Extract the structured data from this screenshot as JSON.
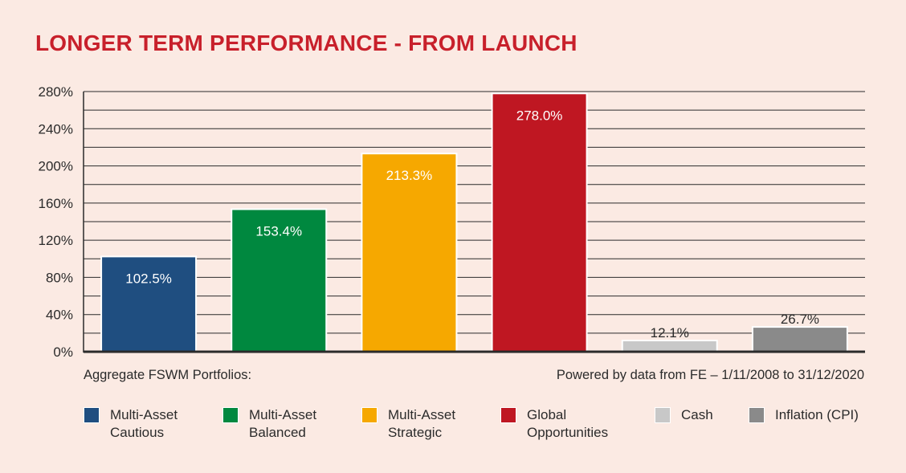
{
  "colors": {
    "background": "#fbeae3",
    "title": "#c8202b",
    "cautious": "#1f4e80",
    "balanced": "#00883f",
    "strategic": "#f6a800",
    "global": "#bf1722",
    "cash": "#c8c8c8",
    "inflation": "#8a8a8a"
  },
  "chart_data": {
    "type": "bar",
    "title": "LONGER TERM PERFORMANCE - FROM LAUNCH",
    "xlabel": "",
    "ylabel": "",
    "ylim": [
      0,
      280
    ],
    "yticks": [
      0,
      40,
      80,
      120,
      160,
      200,
      240,
      280
    ],
    "ytick_labels": [
      "0%",
      "40%",
      "80%",
      "120%",
      "160%",
      "200%",
      "240%",
      "280%"
    ],
    "grid": true,
    "categories": [
      "Multi-Asset Cautious",
      "Multi-Asset Balanced",
      "Multi-Asset Strategic",
      "Global Opportunities",
      "Cash",
      "Inflation (CPI)"
    ],
    "values": [
      102.5,
      153.4,
      213.3,
      278.0,
      12.1,
      26.7
    ],
    "value_labels": [
      "102.5%",
      "153.4%",
      "213.3%",
      "278.0%",
      "12.1%",
      "26.7%"
    ],
    "bar_colors": [
      "#1f4e80",
      "#00883f",
      "#f6a800",
      "#bf1722",
      "#c8c8c8",
      "#8a8a8a"
    ],
    "legend_position": "bottom"
  },
  "footnotes": {
    "left": "Aggregate FSWM Portfolios:",
    "right": "Powered by data from FE – 1/11/2008 to 31/12/2020"
  },
  "legend": {
    "items": [
      {
        "label": "Multi-Asset\nCautious",
        "color": "#1f4e80"
      },
      {
        "label": "Multi-Asset\nBalanced",
        "color": "#00883f"
      },
      {
        "label": "Multi-Asset\nStrategic",
        "color": "#f6a800"
      },
      {
        "label": "Global\nOpportunities",
        "color": "#bf1722"
      },
      {
        "label": "Cash",
        "color": "#c8c8c8"
      },
      {
        "label": "Inflation (CPI)",
        "color": "#8a8a8a"
      }
    ]
  }
}
